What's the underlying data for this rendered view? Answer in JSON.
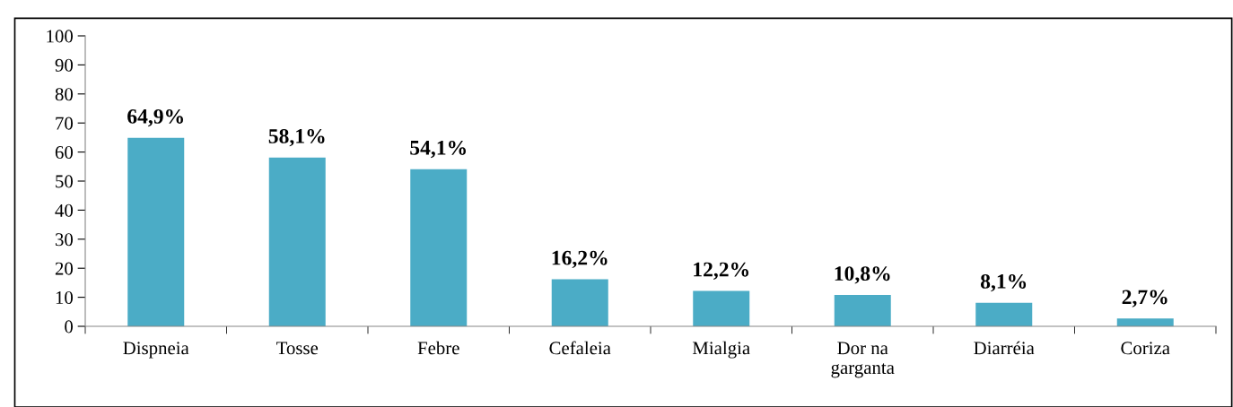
{
  "chart_data": {
    "type": "bar",
    "categories": [
      "Dispneia",
      "Tosse",
      "Febre",
      "Cefaleia",
      "Mialgia",
      "Dor na\ngarganta",
      "Diarréia",
      "Coriza"
    ],
    "values": [
      64.9,
      58.1,
      54.1,
      16.2,
      12.2,
      10.8,
      8.1,
      2.7
    ],
    "value_labels": [
      "64,9%",
      "58,1%",
      "54,1%",
      "16,2%",
      "12,2%",
      "10,8%",
      "8,1%",
      "2,7%"
    ],
    "color": "#4bacc6",
    "ylim": [
      0,
      100
    ],
    "yticks": [
      0,
      10,
      20,
      30,
      40,
      50,
      60,
      70,
      80,
      90,
      100
    ],
    "grid": false
  }
}
